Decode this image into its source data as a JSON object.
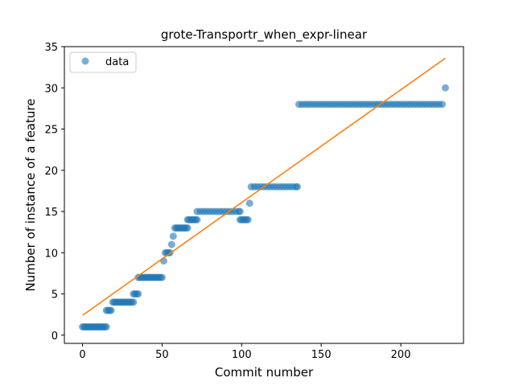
{
  "chart_data": {
    "type": "scatter",
    "title": "grote-Transportr_when_expr-linear",
    "xlabel": "Commit number",
    "ylabel": "Number of instance of a feature",
    "xlim": [
      -11.4,
      239.4
    ],
    "ylim": [
      -1.0,
      35.0
    ],
    "xticks": [
      0,
      50,
      100,
      150,
      200
    ],
    "yticks": [
      0,
      5,
      10,
      15,
      20,
      25,
      30,
      35
    ],
    "grid": false,
    "legend": {
      "position": "top-left",
      "entries": [
        "data"
      ]
    },
    "colors": {
      "data": "#1f77b4",
      "fit": "#ff7f0e"
    },
    "series": [
      {
        "name": "data",
        "kind": "scatter",
        "points": [
          [
            0,
            1
          ],
          [
            1,
            1
          ],
          [
            2,
            1
          ],
          [
            3,
            1
          ],
          [
            4,
            1
          ],
          [
            5,
            1
          ],
          [
            6,
            1
          ],
          [
            7,
            1
          ],
          [
            8,
            1
          ],
          [
            9,
            1
          ],
          [
            10,
            1
          ],
          [
            11,
            1
          ],
          [
            12,
            1
          ],
          [
            13,
            1
          ],
          [
            14,
            1
          ],
          [
            15,
            1
          ],
          [
            15,
            3
          ],
          [
            16,
            3
          ],
          [
            17,
            3
          ],
          [
            18,
            3
          ],
          [
            19,
            4
          ],
          [
            20,
            4
          ],
          [
            21,
            4
          ],
          [
            22,
            4
          ],
          [
            23,
            4
          ],
          [
            24,
            4
          ],
          [
            25,
            4
          ],
          [
            26,
            4
          ],
          [
            27,
            4
          ],
          [
            28,
            4
          ],
          [
            29,
            4
          ],
          [
            30,
            4
          ],
          [
            31,
            4
          ],
          [
            32,
            4
          ],
          [
            32,
            5
          ],
          [
            33,
            5
          ],
          [
            34,
            5
          ],
          [
            35,
            5
          ],
          [
            35,
            7
          ],
          [
            36,
            7
          ],
          [
            37,
            7
          ],
          [
            38,
            7
          ],
          [
            39,
            7
          ],
          [
            40,
            7
          ],
          [
            41,
            7
          ],
          [
            42,
            7
          ],
          [
            43,
            7
          ],
          [
            44,
            7
          ],
          [
            45,
            7
          ],
          [
            46,
            7
          ],
          [
            47,
            7
          ],
          [
            48,
            7
          ],
          [
            49,
            7
          ],
          [
            50,
            7
          ],
          [
            51,
            9
          ],
          [
            52,
            10
          ],
          [
            53,
            10
          ],
          [
            54,
            10
          ],
          [
            55,
            10
          ],
          [
            56,
            11
          ],
          [
            57,
            12
          ],
          [
            58,
            13
          ],
          [
            59,
            13
          ],
          [
            60,
            13
          ],
          [
            61,
            13
          ],
          [
            62,
            13
          ],
          [
            63,
            13
          ],
          [
            64,
            13
          ],
          [
            65,
            13
          ],
          [
            66,
            13
          ],
          [
            66,
            14
          ],
          [
            67,
            14
          ],
          [
            68,
            14
          ],
          [
            69,
            14
          ],
          [
            70,
            14
          ],
          [
            71,
            14
          ],
          [
            72,
            14
          ],
          [
            72,
            15
          ],
          [
            74,
            15
          ],
          [
            76,
            15
          ],
          [
            78,
            15
          ],
          [
            80,
            15
          ],
          [
            82,
            15
          ],
          [
            84,
            15
          ],
          [
            86,
            15
          ],
          [
            88,
            15
          ],
          [
            90,
            15
          ],
          [
            92,
            15
          ],
          [
            94,
            15
          ],
          [
            96,
            15
          ],
          [
            98,
            15
          ],
          [
            99,
            15
          ],
          [
            99,
            14
          ],
          [
            100,
            14
          ],
          [
            101,
            14
          ],
          [
            102,
            14
          ],
          [
            103,
            14
          ],
          [
            104,
            14
          ],
          [
            105,
            16
          ],
          [
            106,
            18
          ],
          [
            108,
            18
          ],
          [
            110,
            18
          ],
          [
            112,
            18
          ],
          [
            114,
            18
          ],
          [
            116,
            18
          ],
          [
            118,
            18
          ],
          [
            120,
            18
          ],
          [
            122,
            18
          ],
          [
            124,
            18
          ],
          [
            126,
            18
          ],
          [
            128,
            18
          ],
          [
            130,
            18
          ],
          [
            132,
            18
          ],
          [
            134,
            18
          ],
          [
            135,
            18
          ],
          [
            136,
            28
          ],
          [
            138,
            28
          ],
          [
            140,
            28
          ],
          [
            142,
            28
          ],
          [
            144,
            28
          ],
          [
            146,
            28
          ],
          [
            148,
            28
          ],
          [
            150,
            28
          ],
          [
            152,
            28
          ],
          [
            154,
            28
          ],
          [
            156,
            28
          ],
          [
            158,
            28
          ],
          [
            160,
            28
          ],
          [
            162,
            28
          ],
          [
            164,
            28
          ],
          [
            166,
            28
          ],
          [
            168,
            28
          ],
          [
            170,
            28
          ],
          [
            172,
            28
          ],
          [
            174,
            28
          ],
          [
            176,
            28
          ],
          [
            178,
            28
          ],
          [
            180,
            28
          ],
          [
            182,
            28
          ],
          [
            184,
            28
          ],
          [
            186,
            28
          ],
          [
            188,
            28
          ],
          [
            190,
            28
          ],
          [
            192,
            28
          ],
          [
            194,
            28
          ],
          [
            196,
            28
          ],
          [
            198,
            28
          ],
          [
            200,
            28
          ],
          [
            202,
            28
          ],
          [
            204,
            28
          ],
          [
            206,
            28
          ],
          [
            208,
            28
          ],
          [
            210,
            28
          ],
          [
            212,
            28
          ],
          [
            214,
            28
          ],
          [
            216,
            28
          ],
          [
            218,
            28
          ],
          [
            220,
            28
          ],
          [
            222,
            28
          ],
          [
            224,
            28
          ],
          [
            226,
            28
          ],
          [
            228,
            30
          ]
        ]
      },
      {
        "kind": "line",
        "points": [
          [
            0,
            2.4
          ],
          [
            228,
            33.6
          ]
        ]
      }
    ]
  }
}
